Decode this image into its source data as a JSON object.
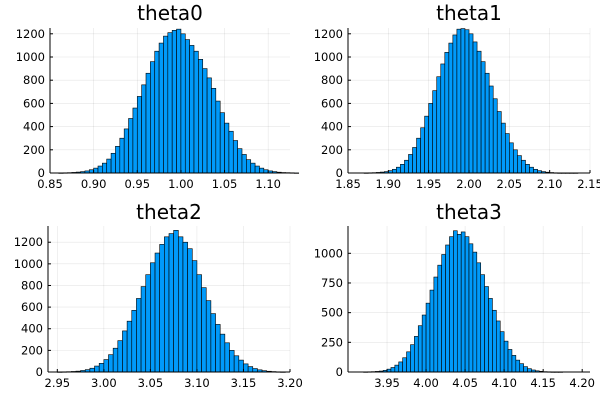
{
  "chart_data": [
    {
      "type": "bar",
      "title": "theta0",
      "xlabel": "",
      "ylabel": "",
      "xlim": [
        0.85,
        1.125
      ],
      "ylim": [
        0,
        1250
      ],
      "xticks": [
        "0.85",
        "0.90",
        "0.95",
        "1.00",
        "1.05",
        "1.10"
      ],
      "yticks": [
        "0",
        "200",
        "400",
        "600",
        "800",
        "1000",
        "1200"
      ],
      "bin_width": 0.005,
      "bin_start": 0.86,
      "counts": [
        1,
        2,
        3,
        5,
        8,
        12,
        18,
        28,
        42,
        60,
        85,
        120,
        170,
        230,
        300,
        380,
        470,
        560,
        660,
        760,
        860,
        960,
        1050,
        1120,
        1180,
        1210,
        1230,
        1240,
        1200,
        1150,
        1100,
        1050,
        980,
        900,
        820,
        730,
        620,
        520,
        430,
        360,
        280,
        210,
        160,
        115,
        85,
        60,
        42,
        28,
        18,
        12,
        7,
        4,
        3,
        2,
        1
      ]
    },
    {
      "type": "bar",
      "title": "theta1",
      "xlabel": "",
      "ylabel": "",
      "xlim": [
        1.85,
        2.15
      ],
      "ylim": [
        0,
        1250
      ],
      "xticks": [
        "1.85",
        "1.90",
        "1.95",
        "2.00",
        "2.05",
        "2.10",
        "2.15"
      ],
      "yticks": [
        "0",
        "200",
        "400",
        "600",
        "800",
        "1000",
        "1200"
      ],
      "bin_width": 0.005,
      "bin_start": 1.87,
      "counts": [
        1,
        2,
        3,
        5,
        8,
        12,
        20,
        32,
        50,
        75,
        110,
        160,
        220,
        300,
        390,
        490,
        600,
        710,
        830,
        940,
        1040,
        1120,
        1190,
        1240,
        1245,
        1235,
        1200,
        1130,
        1050,
        960,
        860,
        750,
        640,
        530,
        430,
        340,
        260,
        200,
        150,
        110,
        75,
        50,
        32,
        20,
        12,
        7,
        4,
        2,
        1,
        1,
        1,
        1,
        1
      ]
    },
    {
      "type": "bar",
      "title": "theta2",
      "xlabel": "",
      "ylabel": "",
      "xlim": [
        2.94,
        3.2
      ],
      "ylim": [
        0,
        1350
      ],
      "xticks": [
        "2.95",
        "3.00",
        "3.05",
        "3.10",
        "3.15",
        "3.20"
      ],
      "yticks": [
        "0",
        "200",
        "400",
        "600",
        "800",
        "1000",
        "1200"
      ],
      "bin_width": 0.005,
      "bin_start": 2.95,
      "counts": [
        1,
        2,
        3,
        5,
        8,
        14,
        22,
        35,
        55,
        80,
        115,
        160,
        220,
        290,
        380,
        470,
        570,
        680,
        790,
        900,
        1010,
        1100,
        1180,
        1250,
        1280,
        1310,
        1250,
        1200,
        1140,
        1030,
        900,
        780,
        660,
        540,
        440,
        350,
        270,
        200,
        150,
        110,
        75,
        50,
        32,
        20,
        12,
        7,
        4,
        2,
        1
      ]
    },
    {
      "type": "bar",
      "title": "theta3",
      "xlabel": "",
      "ylabel": "",
      "xlim": [
        3.9,
        4.21
      ],
      "ylim": [
        0,
        1230
      ],
      "xticks": [
        "3.95",
        "4.00",
        "4.05",
        "4.10",
        "4.15",
        "4.20"
      ],
      "yticks": [
        "0",
        "250",
        "500",
        "750",
        "1000"
      ],
      "bin_width": 0.005,
      "bin_start": 3.92,
      "counts": [
        1,
        2,
        3,
        5,
        8,
        14,
        24,
        38,
        58,
        85,
        120,
        170,
        230,
        300,
        390,
        480,
        580,
        690,
        800,
        900,
        990,
        1070,
        1140,
        1190,
        1160,
        1180,
        1140,
        1080,
        1010,
        920,
        820,
        720,
        620,
        520,
        430,
        340,
        260,
        190,
        140,
        100,
        70,
        45,
        28,
        17,
        10,
        6,
        3,
        2,
        1,
        1,
        1
      ]
    }
  ]
}
